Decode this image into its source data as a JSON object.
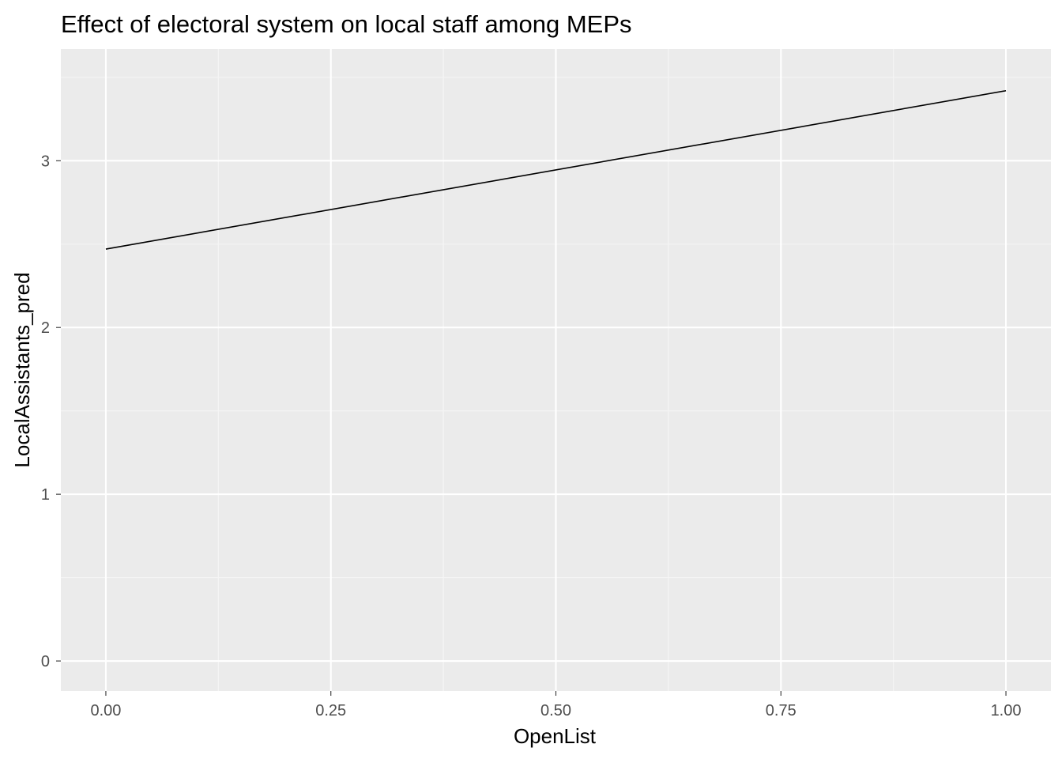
{
  "chart_data": {
    "type": "line",
    "title": "Effect of electoral system on local staff among MEPs",
    "xlabel": "OpenList",
    "ylabel": "LocalAssistants_pred",
    "xlim": [
      -0.05,
      1.05
    ],
    "ylim": [
      -0.18,
      3.67
    ],
    "x_ticks": [
      0.0,
      0.25,
      0.5,
      0.75,
      1.0
    ],
    "x_tick_labels": [
      "0.00",
      "0.25",
      "0.50",
      "0.75",
      "1.00"
    ],
    "y_ticks": [
      0,
      1,
      2,
      3
    ],
    "y_tick_labels": [
      "0",
      "1",
      "2",
      "3"
    ],
    "grid": true,
    "series": [
      {
        "x": [
          0.0,
          1.0
        ],
        "y": [
          2.47,
          3.42
        ]
      }
    ]
  },
  "colors": {
    "panel_background": "#ebebeb",
    "grid_major": "#ffffff",
    "grid_minor": "#f5f5f5",
    "line": "#000000",
    "tick_mark": "#333333",
    "tick_text": "#4d4d4d"
  }
}
